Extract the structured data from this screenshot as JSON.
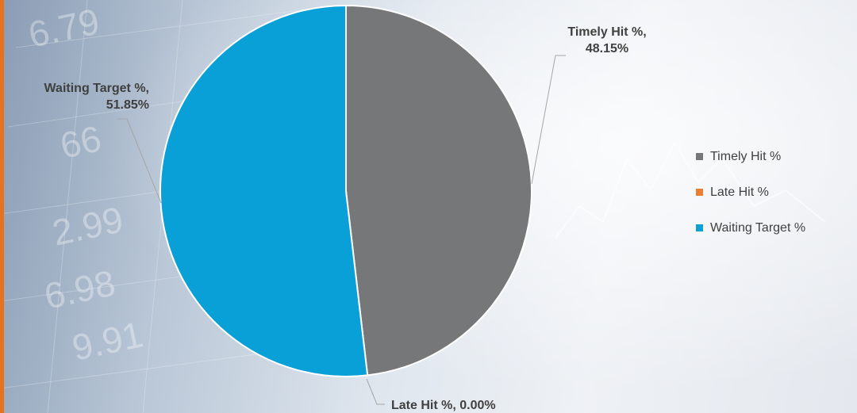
{
  "colors": {
    "accent_bar": "#e8711e"
  },
  "chart_data": {
    "type": "pie",
    "title": "",
    "start_angle_deg": 0,
    "direction": "clockwise",
    "legend_position": "right",
    "slices": [
      {
        "name": "Timely Hit %",
        "value": 48.15,
        "label": "Timely Hit %,|48.15%",
        "color": "#767779"
      },
      {
        "name": "Late Hit %",
        "value": 0.0,
        "label": "Late Hit %, 0.00%",
        "color": "#ed7d31"
      },
      {
        "name": "Waiting Target %",
        "value": 51.85,
        "label": "Waiting Target %,|51.85%",
        "color": "#09a0d8"
      }
    ]
  }
}
